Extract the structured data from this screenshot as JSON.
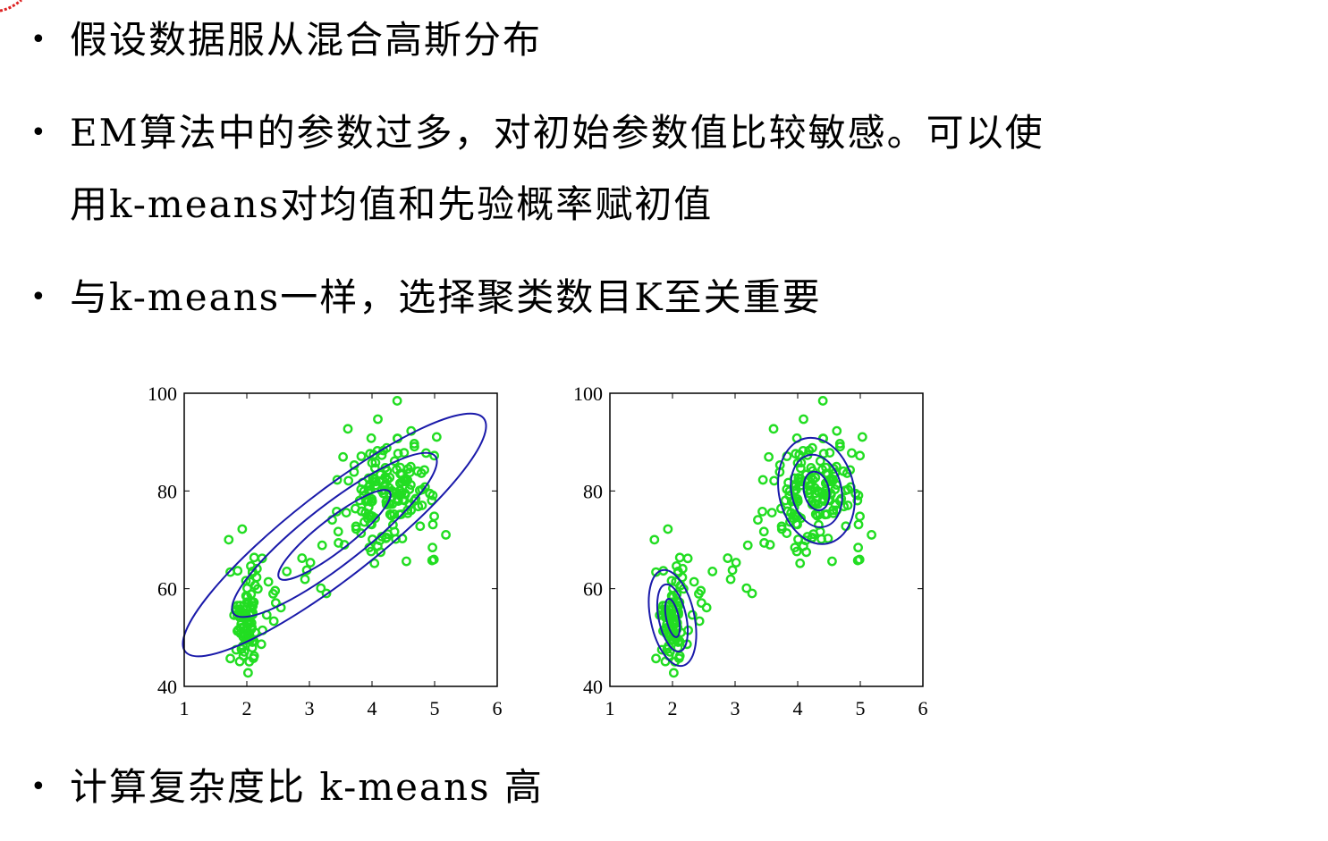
{
  "bullets": [
    "假设数据服从混合高斯分布",
    "EM算法中的参数过多，对初始参数值比较敏感。可以使",
    "与k-means一样，选择聚类数目K至关重要",
    "计算复杂度比 k-means 高"
  ],
  "bullet_continuation": "用k-means对均值和先验概率赋初值",
  "colors": {
    "points": "#22dd22",
    "contours": "#1a1aaa"
  },
  "chart_data": [
    {
      "type": "scatter",
      "x_ticks": [
        "1",
        "2",
        "3",
        "4",
        "5",
        "6"
      ],
      "y_ticks": [
        "40",
        "60",
        "80",
        "100"
      ],
      "xlim": [
        1,
        6
      ],
      "ylim": [
        40,
        100
      ],
      "contours": [
        {
          "cx": 3.4,
          "cy": 71,
          "rx": 0.55,
          "ry": 6
        },
        {
          "cx": 3.4,
          "cy": 71,
          "rx": 1.0,
          "ry": 11
        },
        {
          "cx": 3.4,
          "cy": 71,
          "rx": 1.5,
          "ry": 16
        }
      ]
    },
    {
      "type": "scatter",
      "x_ticks": [
        "1",
        "2",
        "3",
        "4",
        "5",
        "6"
      ],
      "y_ticks": [
        "40",
        "60",
        "80",
        "100"
      ],
      "xlim": [
        1,
        6
      ],
      "ylim": [
        40,
        100
      ],
      "contours": [
        {
          "cx": 2.0,
          "cy": 54,
          "rx": 0.1,
          "ry": 4
        },
        {
          "cx": 2.0,
          "cy": 54,
          "rx": 0.22,
          "ry": 7
        },
        {
          "cx": 2.0,
          "cy": 54,
          "rx": 0.35,
          "ry": 10
        },
        {
          "cx": 4.3,
          "cy": 80,
          "rx": 0.2,
          "ry": 4
        },
        {
          "cx": 4.3,
          "cy": 80,
          "rx": 0.4,
          "ry": 7.5
        },
        {
          "cx": 4.3,
          "cy": 80,
          "rx": 0.6,
          "ry": 11
        }
      ]
    }
  ]
}
